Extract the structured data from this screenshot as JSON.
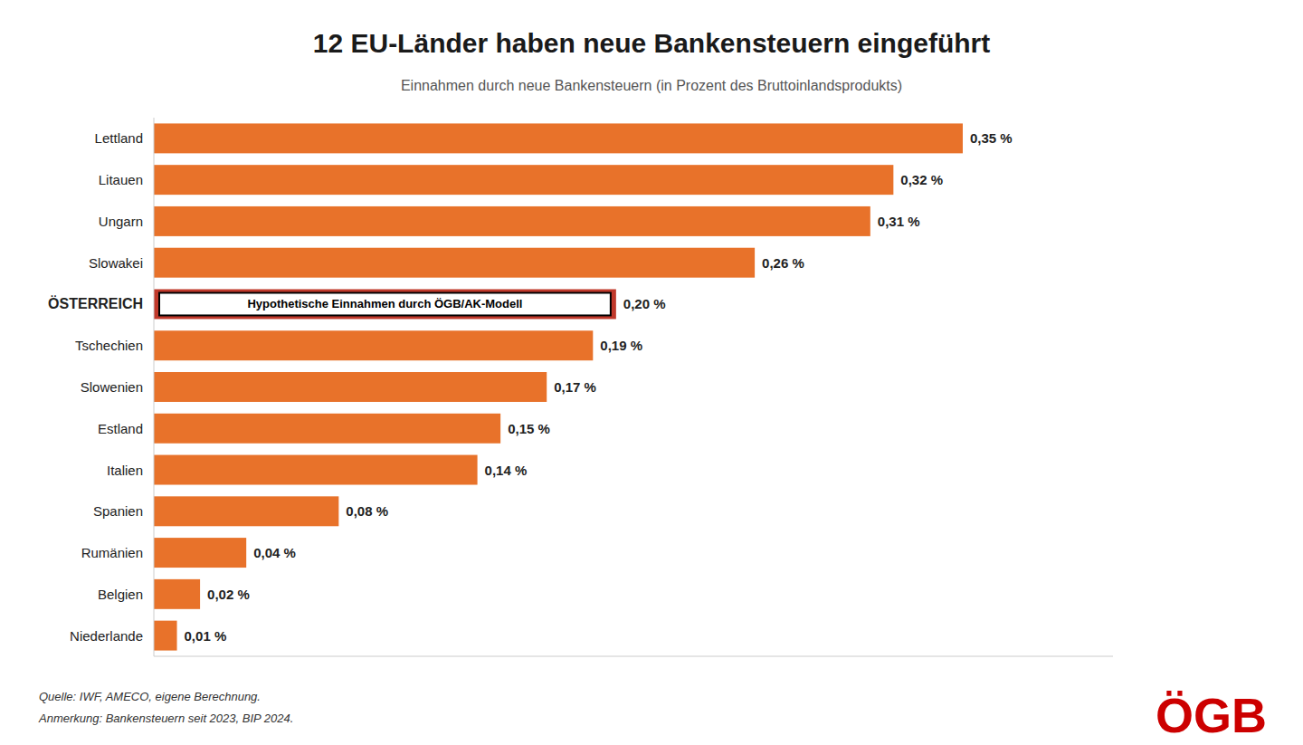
{
  "chart_data": {
    "type": "bar",
    "orientation": "horizontal",
    "title": "12 EU-Länder haben neue Bankensteuern eingeführt",
    "subtitle": "Einnahmen durch neue Bankensteuern (in Prozent des Bruttoinlandsprodukts)",
    "categories": [
      "Lettland",
      "Litauen",
      "Ungarn",
      "Slowakei",
      "ÖSTERREICH",
      "Tschechien",
      "Slowenien",
      "Estland",
      "Italien",
      "Spanien",
      "Rumänien",
      "Belgien",
      "Niederlande"
    ],
    "values": [
      0.35,
      0.32,
      0.31,
      0.26,
      0.2,
      0.19,
      0.17,
      0.15,
      0.14,
      0.08,
      0.04,
      0.02,
      0.01
    ],
    "value_labels": [
      "0,35 %",
      "0,32 %",
      "0,31 %",
      "0,26 %",
      "0,20 %",
      "0,19 %",
      "0,17 %",
      "0,15 %",
      "0,14 %",
      "0,08 %",
      "0,04 %",
      "0,02 %",
      "0,01 %"
    ],
    "colors": [
      "#E8722A",
      "#E8722A",
      "#E8722A",
      "#E8722A",
      "#C0392B",
      "#E8722A",
      "#E8722A",
      "#E8722A",
      "#E8722A",
      "#E8722A",
      "#E8722A",
      "#E8722A",
      "#E8722A"
    ],
    "data_labels": true,
    "xlim": [
      0,
      0.415
    ],
    "tick_labels": "y",
    "grid": false,
    "annotation": {
      "text": "Hypothetische Einnahmen durch ÖGB/AK-Modell",
      "category": "ÖSTERREICH"
    },
    "source": "Quelle: IWF, AMECO, eigene Berechnung.",
    "note": "Anmerkung: Bankensteuern seit 2023, BIP 2024.",
    "logo": {
      "text": "ÖGB",
      "color": "#CC0000"
    }
  }
}
